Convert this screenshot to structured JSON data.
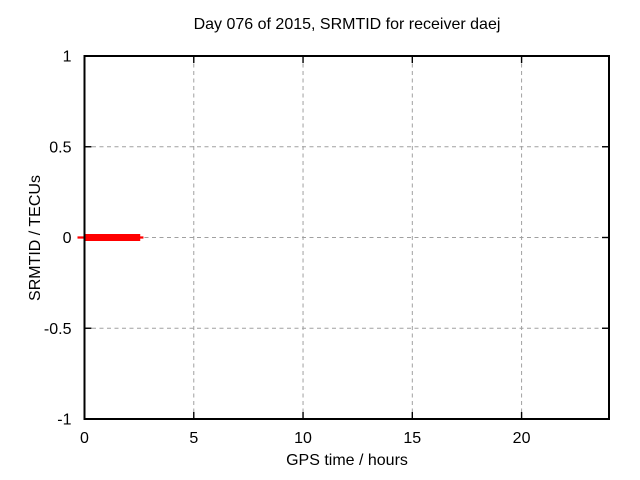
{
  "page": {
    "background": "#ffffff"
  },
  "chart_data": {
    "type": "line",
    "title": "Day 076 of 2015, SRMTID for receiver daej",
    "xlabel": "GPS time / hours",
    "ylabel": "SRMTID / TECUs",
    "xlim": [
      0,
      24
    ],
    "ylim": [
      -1,
      1
    ],
    "xticks": [
      0,
      5,
      10,
      15,
      20
    ],
    "xtick_labels": [
      "0",
      "5",
      "10",
      "15",
      "20"
    ],
    "yticks": [
      -1,
      -0.5,
      0,
      0.5,
      1
    ],
    "ytick_labels": [
      "-1",
      "-0.5",
      "0",
      "0.5",
      "1"
    ],
    "grid": true,
    "grid_style": "dashed",
    "legend": "none",
    "series": [
      {
        "name": "SRMTID",
        "color": "#ff0000",
        "style": "thick horizontal segment with thin end caps",
        "segments": [
          {
            "x_start": 0,
            "x_end": 2.55,
            "y": 0
          }
        ]
      }
    ],
    "colors": {
      "grid": "#a0a0a0",
      "axis": "#000000",
      "text": "#000000",
      "series": "#ff0000"
    }
  }
}
